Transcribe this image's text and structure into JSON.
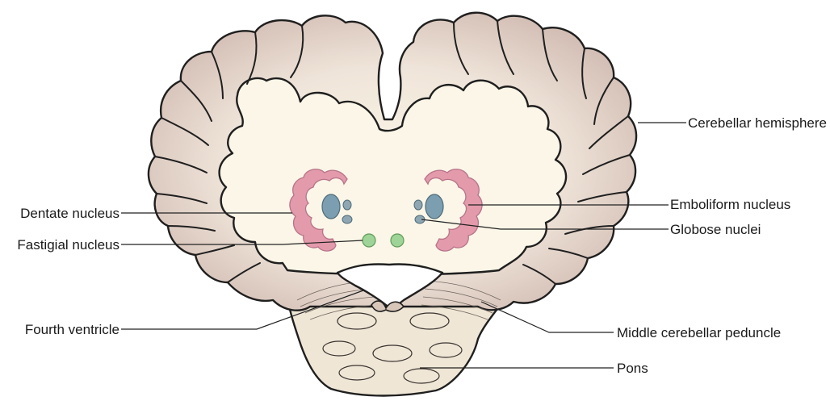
{
  "labels": {
    "cerebellar_hemisphere": "Cerebellar hemisphere",
    "emboliform_nucleus": "Emboliform nucleus",
    "globose_nuclei": "Globose nuclei",
    "dentate_nucleus": "Dentate nucleus",
    "fastigial_nucleus": "Fastigial nucleus",
    "fourth_ventricle": "Fourth ventricle",
    "middle_cerebellar_peduncle": "Middle cerebellar peduncle",
    "pons": "Pons"
  },
  "colors": {
    "cortex": "#d9c9bf",
    "white_matter": "#fbf6e7",
    "brainstem": "#efe6d6",
    "dentate": "#e39aab",
    "emboliform": "#7b9eb0",
    "fastigial": "#9ed498",
    "outline": "#1f1f1f"
  }
}
